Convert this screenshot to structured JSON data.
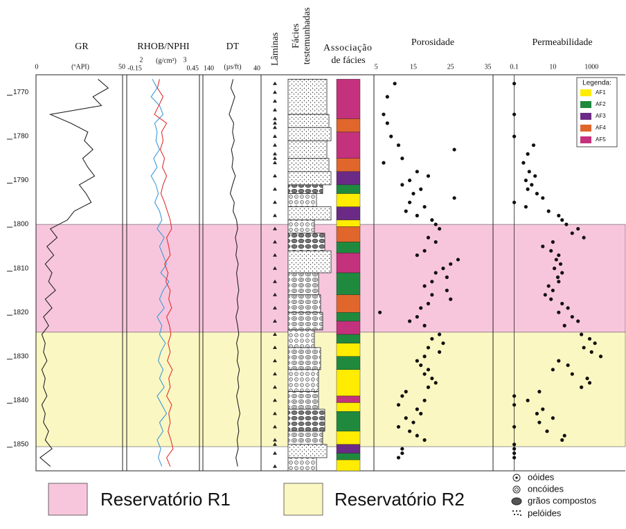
{
  "depth": {
    "lim": [
      1766,
      1856
    ],
    "ticks": [
      1770,
      1780,
      1790,
      1800,
      1810,
      1820,
      1830,
      1840,
      1850
    ],
    "samples": [
      1767,
      1769,
      1771,
      1773,
      1775,
      1777,
      1779,
      1781,
      1783,
      1785,
      1787,
      1789,
      1791,
      1793,
      1795,
      1797,
      1799,
      1801,
      1803,
      1805,
      1807,
      1809,
      1811,
      1813,
      1815,
      1817,
      1819,
      1821,
      1823,
      1825,
      1827,
      1829,
      1831,
      1833,
      1835,
      1837,
      1839,
      1841,
      1843,
      1845,
      1847,
      1849,
      1851,
      1853,
      1855
    ]
  },
  "tracks": {
    "gr": {
      "title": "GR",
      "unit": "(ºAPI)",
      "xlim": [
        0,
        50
      ],
      "xticks": [
        0,
        50
      ],
      "color": "#222222",
      "values": [
        36,
        42,
        33,
        38,
        8,
        20,
        30,
        28,
        33,
        27,
        30,
        34,
        25,
        29,
        32,
        22,
        18,
        8,
        12,
        6,
        10,
        5,
        9,
        7,
        11,
        5,
        9,
        4,
        7,
        3,
        5,
        4,
        6,
        3,
        5,
        4,
        6,
        3,
        5,
        4,
        7,
        5,
        9,
        2,
        8
      ]
    },
    "rhob_nphi": {
      "title": "RHOB/NPHI",
      "unit": "(g/cm³)",
      "rhob": {
        "xlim": [
          2,
          3
        ],
        "xticks": [
          2,
          3
        ],
        "color": "#e03030",
        "values": [
          2.45,
          2.42,
          2.5,
          2.44,
          2.38,
          2.55,
          2.48,
          2.5,
          2.46,
          2.52,
          2.49,
          2.55,
          2.5,
          2.47,
          2.52,
          2.56,
          2.6,
          2.62,
          2.55,
          2.58,
          2.6,
          2.52,
          2.57,
          2.54,
          2.6,
          2.58,
          2.62,
          2.55,
          2.59,
          2.61,
          2.57,
          2.6,
          2.56,
          2.63,
          2.58,
          2.6,
          2.55,
          2.62,
          2.58,
          2.6,
          2.57,
          2.61,
          2.64,
          2.55,
          2.6
        ]
      },
      "nphi": {
        "xlim": [
          -0.15,
          0.45
        ],
        "xticks": [
          -0.15,
          0.45
        ],
        "color": "#3a9ad9",
        "values": [
          0.06,
          0.1,
          0.05,
          0.12,
          0.15,
          0.08,
          0.1,
          0.09,
          0.12,
          0.07,
          0.1,
          0.05,
          0.09,
          0.11,
          0.08,
          0.12,
          0.14,
          0.1,
          0.16,
          0.12,
          0.15,
          0.18,
          0.13,
          0.2,
          0.15,
          0.12,
          0.16,
          0.1,
          0.14,
          0.12,
          0.17,
          0.13,
          0.11,
          0.15,
          0.12,
          0.16,
          0.1,
          0.14,
          0.18,
          0.12,
          0.15,
          0.1,
          0.13,
          0.11,
          0.14
        ]
      }
    },
    "dt": {
      "title": "DT",
      "unit": "(µs/ft)",
      "xlim": [
        140,
        40
      ],
      "xticks": [
        140,
        40
      ],
      "color": "#222222",
      "values": [
        88,
        92,
        85,
        90,
        95,
        87,
        89,
        86,
        91,
        88,
        90,
        84,
        89,
        93,
        86,
        88,
        82,
        80,
        84,
        81,
        83,
        79,
        82,
        80,
        78,
        81,
        79,
        83,
        80,
        78,
        82,
        79,
        81,
        77,
        80,
        78,
        82,
        79,
        76,
        80,
        78,
        81,
        79,
        83,
        80
      ]
    },
    "laminas": {
      "title": "Lâminas",
      "depths": [
        1768,
        1770,
        1772,
        1774,
        1776,
        1777,
        1778,
        1780,
        1782,
        1784,
        1785,
        1786,
        1789,
        1792,
        1795,
        1798,
        1801,
        1804,
        1807,
        1810,
        1813,
        1816,
        1819,
        1822,
        1825,
        1828,
        1831,
        1834,
        1837,
        1840,
        1843,
        1846,
        1849,
        1850,
        1852,
        1855
      ]
    },
    "facies": {
      "title": [
        "Fácies",
        "testemunhadas"
      ],
      "intervals": [
        {
          "top": 1767,
          "base": 1775,
          "grain": 3
        },
        {
          "top": 1775,
          "base": 1778,
          "grain": 3
        },
        {
          "top": 1778,
          "base": 1781,
          "grain": 3
        },
        {
          "top": 1781,
          "base": 1785,
          "grain": 3
        },
        {
          "top": 1785,
          "base": 1788,
          "grain": 3
        },
        {
          "top": 1788,
          "base": 1791,
          "grain": 3
        },
        {
          "top": 1791,
          "base": 1793,
          "grain": 2
        },
        {
          "top": 1793,
          "base": 1796,
          "grain": 0
        },
        {
          "top": 1796,
          "base": 1799,
          "grain": 3
        },
        {
          "top": 1799,
          "base": 1802,
          "grain": 0
        },
        {
          "top": 1802,
          "base": 1806,
          "grain": 2
        },
        {
          "top": 1806,
          "base": 1811,
          "grain": 3
        },
        {
          "top": 1811,
          "base": 1816,
          "grain": 1
        },
        {
          "top": 1816,
          "base": 1820,
          "grain": 1
        },
        {
          "top": 1820,
          "base": 1824,
          "grain": 1
        },
        {
          "top": 1824,
          "base": 1828,
          "grain": 0
        },
        {
          "top": 1828,
          "base": 1833,
          "grain": 1
        },
        {
          "top": 1833,
          "base": 1838,
          "grain": 0
        },
        {
          "top": 1838,
          "base": 1842,
          "grain": 1
        },
        {
          "top": 1842,
          "base": 1847,
          "grain": 2
        },
        {
          "top": 1847,
          "base": 1850,
          "grain": 1
        },
        {
          "top": 1850,
          "base": 1853,
          "grain": 3
        },
        {
          "top": 1853,
          "base": 1856,
          "grain": 0
        }
      ]
    },
    "associacao": {
      "title": [
        "Associação",
        "de fácies"
      ],
      "intervals": [
        {
          "top": 1767,
          "base": 1776,
          "code": 4
        },
        {
          "top": 1776,
          "base": 1779,
          "code": 3
        },
        {
          "top": 1779,
          "base": 1785,
          "code": 4
        },
        {
          "top": 1785,
          "base": 1788,
          "code": 3
        },
        {
          "top": 1788,
          "base": 1791,
          "code": 2
        },
        {
          "top": 1791,
          "base": 1793,
          "code": 1
        },
        {
          "top": 1793,
          "base": 1796,
          "code": 0
        },
        {
          "top": 1796,
          "base": 1799,
          "code": 2
        },
        {
          "top": 1799,
          "base": 1800.5,
          "code": 0
        },
        {
          "top": 1800.5,
          "base": 1804,
          "code": 3
        },
        {
          "top": 1804,
          "base": 1806.5,
          "code": 1
        },
        {
          "top": 1806.5,
          "base": 1811,
          "code": 4
        },
        {
          "top": 1811,
          "base": 1816,
          "code": 1
        },
        {
          "top": 1816,
          "base": 1820,
          "code": 3
        },
        {
          "top": 1820,
          "base": 1822,
          "code": 1
        },
        {
          "top": 1822,
          "base": 1825,
          "code": 4
        },
        {
          "top": 1825,
          "base": 1827,
          "code": 1
        },
        {
          "top": 1827,
          "base": 1830,
          "code": 0
        },
        {
          "top": 1830,
          "base": 1833,
          "code": 1
        },
        {
          "top": 1833,
          "base": 1839,
          "code": 0
        },
        {
          "top": 1839,
          "base": 1840.5,
          "code": 4
        },
        {
          "top": 1840.5,
          "base": 1842.5,
          "code": 0
        },
        {
          "top": 1842.5,
          "base": 1847,
          "code": 1
        },
        {
          "top": 1847,
          "base": 1850,
          "code": 0
        },
        {
          "top": 1850,
          "base": 1852,
          "code": 2
        },
        {
          "top": 1852,
          "base": 1853.5,
          "code": 1
        },
        {
          "top": 1853.5,
          "base": 1856,
          "code": 0
        }
      ]
    },
    "porosidade": {
      "title": "Porosidade",
      "xlim": [
        4.4,
        36.4
      ],
      "xticks": [
        5,
        15,
        25,
        35
      ],
      "color": "#111111",
      "depth": [
        1768,
        1771,
        1775,
        1777,
        1780,
        1782,
        1783,
        1785,
        1786,
        1788,
        1789,
        1790,
        1791,
        1792,
        1793,
        1794,
        1795,
        1796,
        1797,
        1798,
        1799,
        1800,
        1801,
        1803,
        1804,
        1806,
        1807,
        1808,
        1809,
        1810,
        1811,
        1812,
        1813,
        1814,
        1815,
        1816,
        1817,
        1818,
        1819,
        1820,
        1821,
        1822,
        1823,
        1825,
        1826,
        1827,
        1828,
        1829,
        1830,
        1831,
        1832,
        1833,
        1834,
        1835,
        1836,
        1837,
        1838,
        1839,
        1840,
        1841,
        1842,
        1843,
        1844,
        1845,
        1846,
        1847,
        1848,
        1849,
        1851,
        1852,
        1853
      ],
      "values": [
        10,
        8,
        7,
        8,
        9,
        11,
        26,
        12,
        7,
        16,
        19,
        14,
        12,
        17,
        15,
        26,
        14,
        18,
        13,
        16,
        20,
        21,
        22,
        19,
        21,
        18,
        16,
        27,
        25,
        23,
        21,
        24,
        20,
        18,
        24,
        20,
        25,
        19,
        17,
        6,
        16,
        14,
        18,
        22,
        20,
        23,
        19,
        22,
        18,
        16,
        17,
        19,
        18,
        20,
        21,
        19,
        13,
        12,
        18,
        11,
        16,
        17,
        13,
        15,
        11,
        14,
        16,
        18,
        12,
        12,
        11
      ]
    },
    "permeabilidade": {
      "title": "Permeabilidade",
      "log": true,
      "xlim": [
        0.008,
        56000
      ],
      "xticks": [
        0.1,
        10,
        1000
      ],
      "color": "#111111",
      "depth": [
        1768,
        1775,
        1780,
        1782,
        1784,
        1786,
        1788,
        1789,
        1790,
        1791,
        1792,
        1793,
        1794,
        1795,
        1796,
        1797,
        1798,
        1799,
        1800,
        1801,
        1802,
        1803,
        1804,
        1805,
        1806,
        1807,
        1808,
        1809,
        1810,
        1811,
        1812,
        1813,
        1814,
        1815,
        1816,
        1817,
        1818,
        1819,
        1820,
        1821,
        1822,
        1823,
        1825,
        1826,
        1827,
        1828,
        1829,
        1830,
        1831,
        1832,
        1833,
        1834,
        1835,
        1836,
        1837,
        1838,
        1839,
        1840,
        1841,
        1842,
        1843,
        1844,
        1845,
        1846,
        1847,
        1848,
        1849,
        1850,
        1851,
        1852,
        1853
      ],
      "values": [
        0.1,
        0.1,
        0.1,
        1,
        0.5,
        0.3,
        0.6,
        1.2,
        0.4,
        0.8,
        0.5,
        1.5,
        3,
        0.1,
        0.4,
        6,
        20,
        30,
        50,
        200,
        100,
        400,
        10,
        3,
        8,
        20,
        15,
        25,
        12,
        30,
        18,
        20,
        6,
        10,
        4,
        8,
        30,
        60,
        20,
        100,
        200,
        40,
        300,
        800,
        1500,
        400,
        1000,
        3000,
        20,
        60,
        10,
        100,
        600,
        800,
        300,
        2,
        0.1,
        0.5,
        0.1,
        3,
        1.5,
        10,
        2,
        0.1,
        5,
        40,
        30,
        0.1,
        0.1,
        0.1,
        0.1
      ]
    }
  },
  "legend": {
    "title": "Legenda:",
    "items": [
      {
        "label": "AF1",
        "color": "#ffec00"
      },
      {
        "label": "AF2",
        "color": "#1f8a3e"
      },
      {
        "label": "AF3",
        "color": "#6b2a85"
      },
      {
        "label": "AF4",
        "color": "#e0662c"
      },
      {
        "label": "AF5",
        "color": "#c4317c"
      }
    ]
  },
  "reservoirs": [
    {
      "label": "Reservatório R1",
      "top": 1800,
      "base": 1824.5,
      "color": "#f8c6dc"
    },
    {
      "label": "Reservatório R2",
      "top": 1824.5,
      "base": 1850.5,
      "color": "#fbf7c2"
    }
  ],
  "grain_legend": [
    "oóides",
    "oncóides",
    "grãos compostos",
    "pelóides"
  ]
}
